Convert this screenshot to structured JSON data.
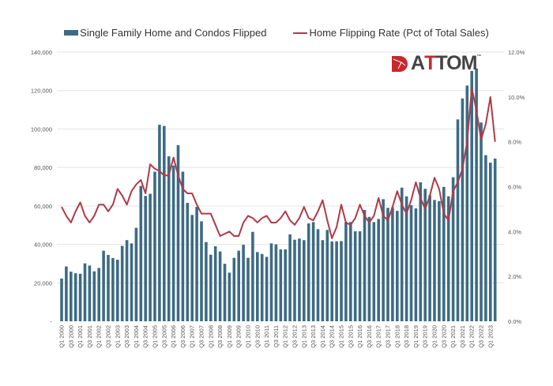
{
  "chart_data": {
    "type": "bar+line",
    "legend_position": "top",
    "grid": true,
    "series": [
      {
        "name": "Single Family Home and Condos Flipped",
        "type": "bar",
        "axis": "left",
        "color": "#3d6b84",
        "values": [
          22200,
          28500,
          25800,
          25000,
          24700,
          30100,
          29000,
          26000,
          27700,
          36700,
          34500,
          32900,
          32000,
          39200,
          42200,
          40500,
          48600,
          70400,
          65200,
          66300,
          77800,
          102200,
          101600,
          85800,
          81000,
          91600,
          77800,
          61600,
          55300,
          59500,
          52000,
          41200,
          34600,
          39000,
          36300,
          29900,
          25300,
          33000,
          36700,
          39800,
          33000,
          46500,
          36000,
          35000,
          33500,
          40500,
          40000,
          37400,
          37400,
          45200,
          42400,
          43000,
          42200,
          50900,
          51600,
          47900,
          42200,
          47500,
          41500,
          41600,
          41700,
          51600,
          51600,
          46800,
          46800,
          57900,
          54300,
          51600,
          53200,
          63500,
          59000,
          59300,
          57400,
          69500,
          65000,
          60400,
          58700,
          72300,
          68900,
          65600,
          63100,
          62500,
          69900,
          65000,
          74900,
          105000,
          115900,
          122600,
          130200,
          131500,
          103400,
          86400,
          82500,
          84600
        ]
      },
      {
        "name": "Home Flipping Rate (Pct of Total Sales)",
        "type": "line",
        "axis": "right",
        "color": "#b03a48",
        "values": [
          5.1,
          4.7,
          4.4,
          4.9,
          5.3,
          4.7,
          4.4,
          4.7,
          5.2,
          5.2,
          4.9,
          5.2,
          5.9,
          5.6,
          5.2,
          5.8,
          6.1,
          6.3,
          5.7,
          7.0,
          6.8,
          6.7,
          6.5,
          6.5,
          7.3,
          6.5,
          5.9,
          5.7,
          5.7,
          5.2,
          4.8,
          4.8,
          4.8,
          4.3,
          3.8,
          3.9,
          4.0,
          3.8,
          3.8,
          4.4,
          4.7,
          4.6,
          4.4,
          4.6,
          4.7,
          4.4,
          4.4,
          4.6,
          4.9,
          4.5,
          4.3,
          4.6,
          5.1,
          4.6,
          4.5,
          4.9,
          5.4,
          4.5,
          3.7,
          4.2,
          5.2,
          4.4,
          4.3,
          4.6,
          5.2,
          4.7,
          4.4,
          4.7,
          5.5,
          4.7,
          4.5,
          5.1,
          5.8,
          5.2,
          4.8,
          5.4,
          6.2,
          5.5,
          5.0,
          5.6,
          6.4,
          5.9,
          4.8,
          4.5,
          5.8,
          6.2,
          6.8,
          8.0,
          10.4,
          9.4,
          8.1,
          8.8,
          10.0,
          8.0
        ]
      }
    ],
    "y_left": {
      "range": [
        0,
        140000
      ],
      "ticks": [
        "-",
        "20,000",
        "40,000",
        "60,000",
        "80,000",
        "100,000",
        "120,000",
        "140,000"
      ]
    },
    "y_right": {
      "range": [
        0,
        12
      ],
      "ticks": [
        "0.0%",
        "2.0%",
        "4.0%",
        "6.0%",
        "8.0%",
        "10.0%",
        "12.0%"
      ]
    },
    "x_start": "Q1 2000",
    "x_end": "Q2 2023",
    "x_tick_labels": [
      "Q1 2000",
      "Q3 2000",
      "Q1 2001",
      "Q3 2001",
      "Q1 2002",
      "Q3 2002",
      "Q1 2003",
      "Q3 2003",
      "Q1 2004",
      "Q3 2004",
      "Q1 2005",
      "Q3 2005",
      "Q1 2006",
      "Q3 2006",
      "Q1 2007",
      "Q3 2007",
      "Q1 2008",
      "Q3 2008",
      "Q1 2009",
      "Q3 2009",
      "Q1 2010",
      "Q3 2010",
      "Q1 2011",
      "Q3 2011",
      "Q1 2012",
      "Q3 2012",
      "Q1 2013",
      "Q3 2013",
      "Q1 2014",
      "Q3 2014",
      "Q1 2015",
      "Q3 2015",
      "Q1 2016",
      "Q3 2016",
      "Q1 2017",
      "Q3 2017",
      "Q1 2018",
      "Q3 2018",
      "Q1 2019",
      "Q3 2019",
      "Q1 2020",
      "Q3 2020",
      "Q1 2021",
      "Q3 2021",
      "Q1 2022",
      "Q3 2022",
      "Q1 2023"
    ]
  },
  "logo": {
    "text_a": "A",
    "text_t": "T",
    "text_rest": "TOM",
    "tm": "™"
  }
}
